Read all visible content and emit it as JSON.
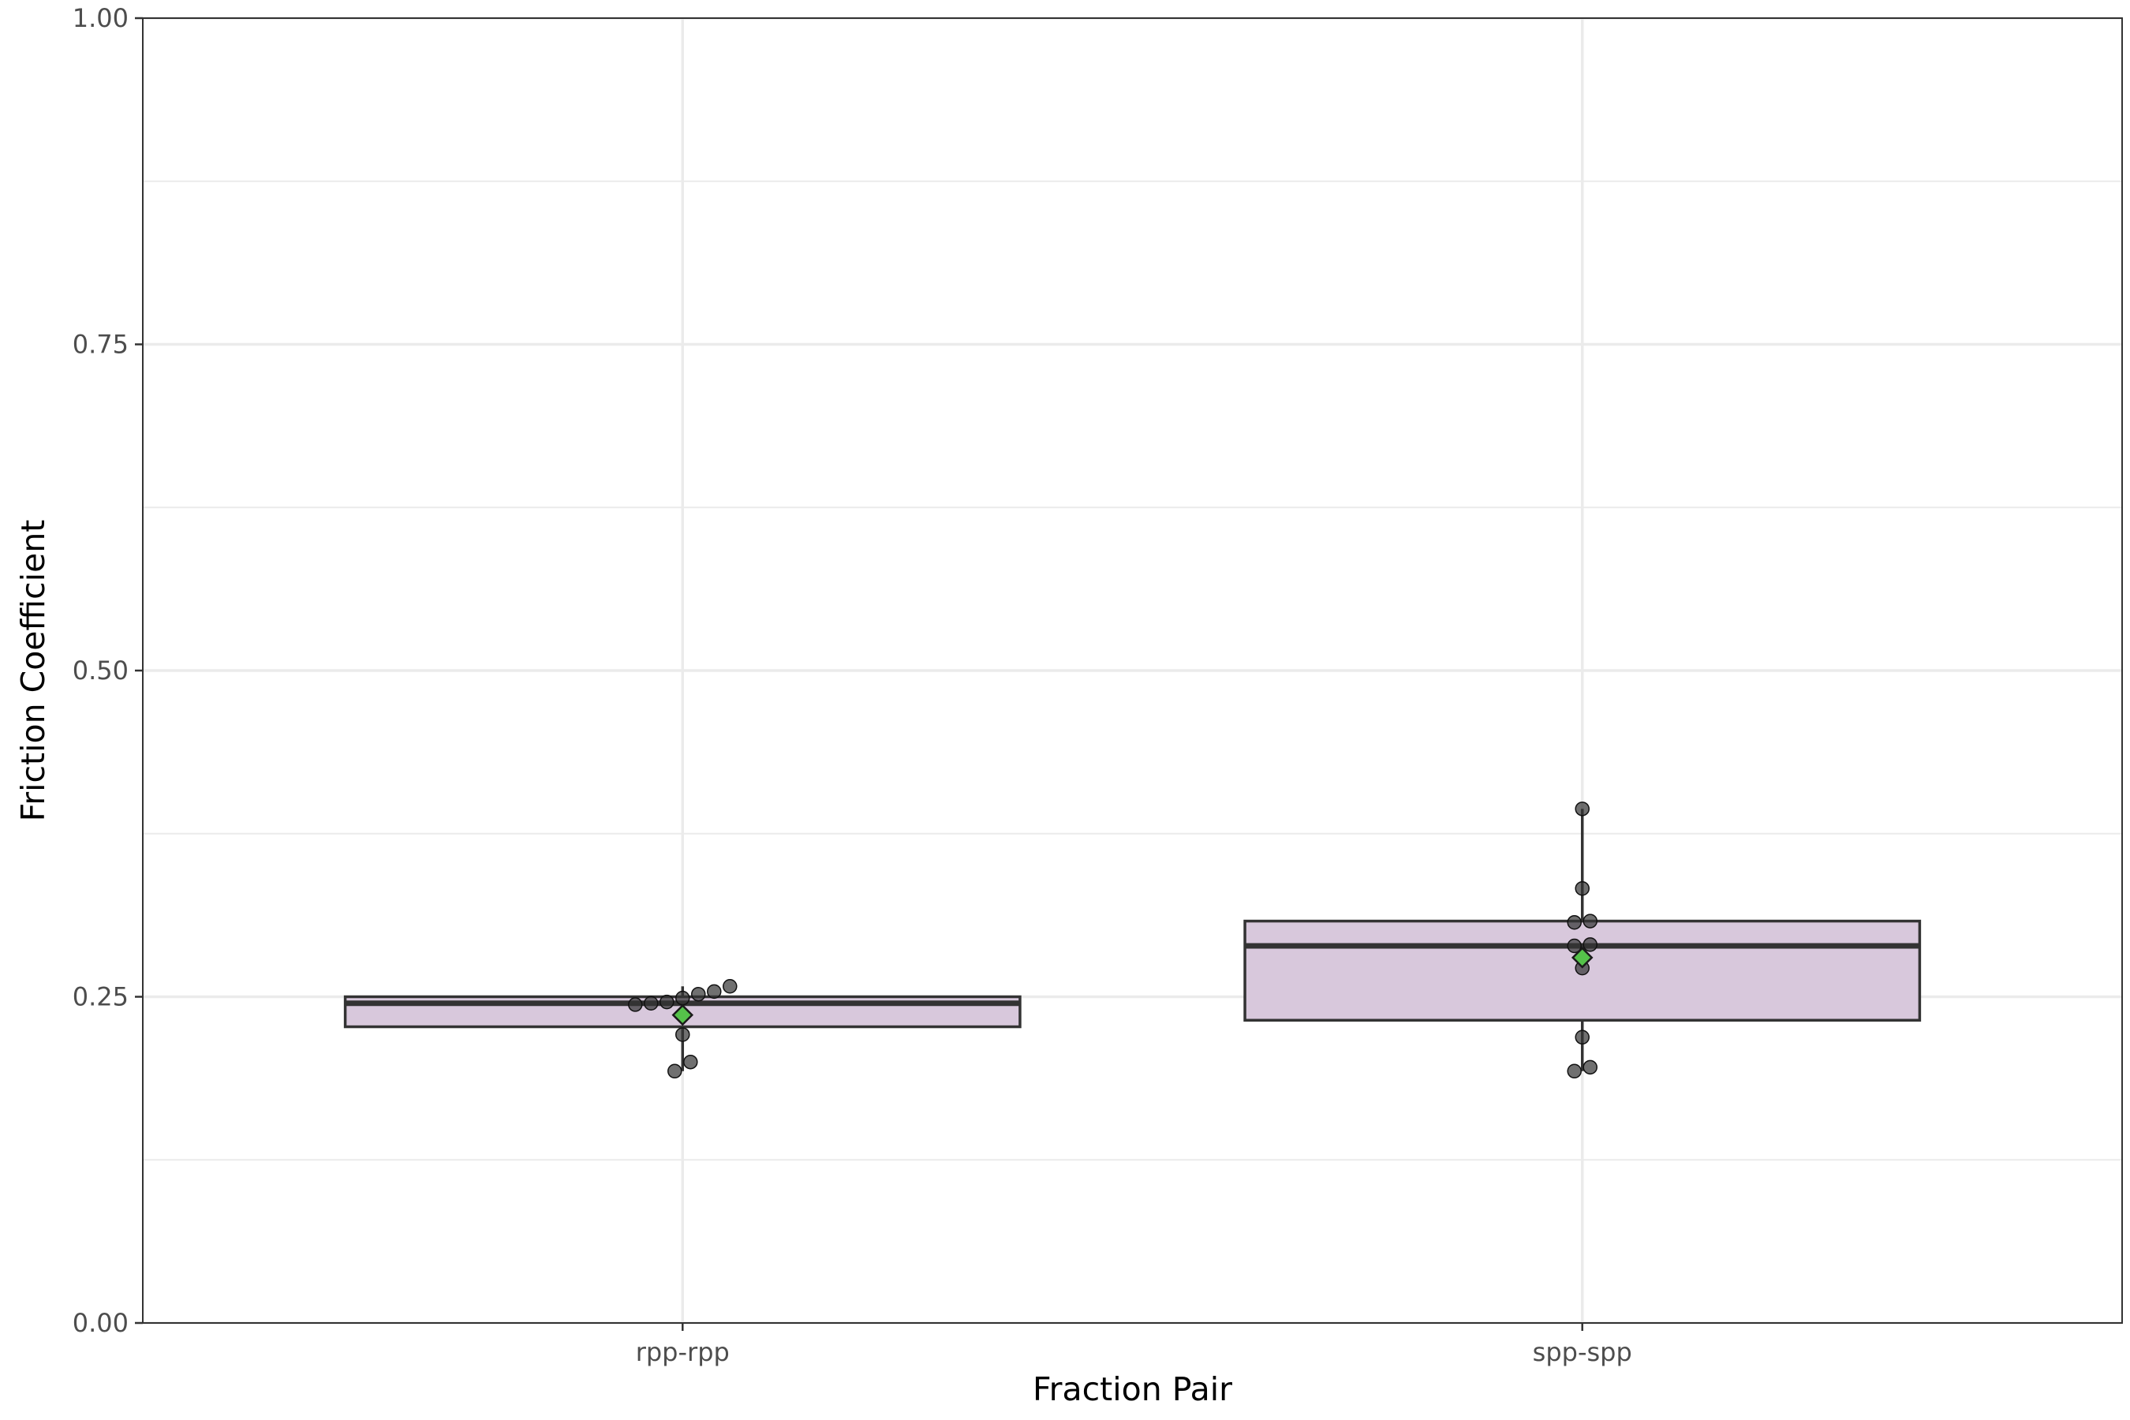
{
  "chart_data": {
    "type": "box",
    "title": "",
    "xlabel": "Fraction Pair",
    "ylabel": "Friction Coefficient",
    "ylim": [
      0,
      1
    ],
    "yticks": [
      0,
      0.25,
      0.5,
      0.75,
      1
    ],
    "ytick_labels": [
      "0.00",
      "0.25",
      "0.50",
      "0.75",
      "1.00"
    ],
    "grid": true,
    "categories": [
      "rpp-rpp",
      "spp-spp"
    ],
    "colors": {
      "box_fill": "#d8c8dc",
      "box_stroke": "#333333",
      "point": "#333333",
      "mean_marker": "#55c24a",
      "grid": "#ebebeb",
      "panel_border": "#333333"
    },
    "boxes": [
      {
        "category": "rpp-rpp",
        "q1": 0.227,
        "median": 0.245,
        "q3": 0.25,
        "whisker_low": 0.193,
        "whisker_high": 0.258,
        "mean": 0.236,
        "points": [
          0.252,
          0.246,
          0.254,
          0.244,
          0.258,
          0.245,
          0.249,
          0.221,
          0.2,
          0.193
        ]
      },
      {
        "category": "spp-spp",
        "q1": 0.232,
        "median": 0.289,
        "q3": 0.308,
        "whisker_low": 0.193,
        "whisker_high": 0.394,
        "mean": 0.28,
        "points": [
          0.394,
          0.333,
          0.307,
          0.308,
          0.289,
          0.29,
          0.272,
          0.219,
          0.193,
          0.196
        ]
      }
    ]
  }
}
